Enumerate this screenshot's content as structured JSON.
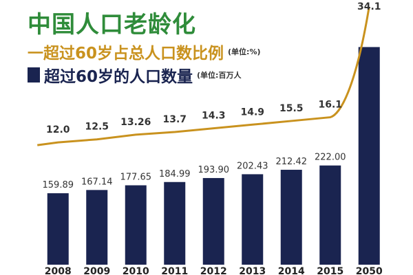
{
  "title": "中国人口老龄化",
  "legend": {
    "line_label": "一超过60岁占总人口数比例",
    "line_unit": "(单位:%)",
    "bar_label": "超过60岁的人口数量",
    "bar_unit": "(单位:百万人"
  },
  "colors": {
    "title": "#2f8c3a",
    "line": "#c9921e",
    "bar": "#1a2450",
    "text": "#333333"
  },
  "chart_data": {
    "type": "bar",
    "categories": [
      "2008",
      "2009",
      "2010",
      "2011",
      "2012",
      "2013",
      "2014",
      "2015",
      "2050"
    ],
    "series": [
      {
        "name": "超过60岁的人口数量",
        "type": "bar",
        "values": [
          159.89,
          167.14,
          177.65,
          184.99,
          193.9,
          202.43,
          212.42,
          222.0,
          487.0
        ],
        "labels": [
          "159.89",
          "167.14",
          "177.65",
          "184.99",
          "193.90",
          "202.43",
          "212.42",
          "222.00",
          ""
        ]
      },
      {
        "name": "超过60岁占总人口数比例",
        "type": "line",
        "values": [
          12.0,
          12.5,
          13.26,
          13.7,
          14.3,
          14.9,
          15.5,
          16.1,
          34.1
        ],
        "labels": [
          "12.0",
          "12.5",
          "13.26",
          "13.7",
          "14.3",
          "14.9",
          "15.5",
          "16.1",
          "34.1"
        ]
      }
    ],
    "bar_ylim": [
      0,
      500
    ],
    "line_ylim": [
      10,
      34.1
    ],
    "grid": false,
    "legend_position": "top-left"
  }
}
